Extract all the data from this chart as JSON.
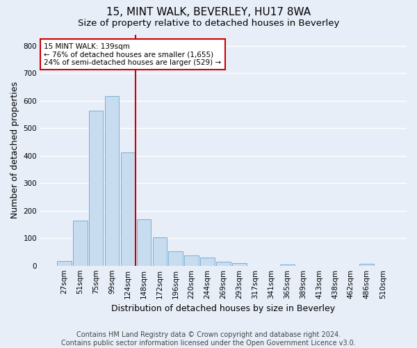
{
  "title": "15, MINT WALK, BEVERLEY, HU17 8WA",
  "subtitle": "Size of property relative to detached houses in Beverley",
  "xlabel": "Distribution of detached houses by size in Beverley",
  "ylabel": "Number of detached properties",
  "categories": [
    "27sqm",
    "51sqm",
    "75sqm",
    "99sqm",
    "124sqm",
    "148sqm",
    "172sqm",
    "196sqm",
    "220sqm",
    "244sqm",
    "269sqm",
    "293sqm",
    "317sqm",
    "341sqm",
    "365sqm",
    "389sqm",
    "413sqm",
    "438sqm",
    "462sqm",
    "486sqm",
    "510sqm"
  ],
  "values": [
    18,
    163,
    563,
    618,
    413,
    170,
    103,
    52,
    38,
    30,
    15,
    10,
    0,
    0,
    5,
    0,
    0,
    0,
    0,
    7,
    0
  ],
  "bar_color": "#c8dcf0",
  "bar_edge_color": "#7aafd4",
  "vline_color": "#cc0000",
  "annotation_text": "15 MINT WALK: 139sqm\n← 76% of detached houses are smaller (1,655)\n24% of semi-detached houses are larger (529) →",
  "annotation_box_color": "#ffffff",
  "annotation_box_edge_color": "#cc0000",
  "ylim": [
    0,
    840
  ],
  "yticks": [
    0,
    100,
    200,
    300,
    400,
    500,
    600,
    700,
    800
  ],
  "footnote": "Contains HM Land Registry data © Crown copyright and database right 2024.\nContains public sector information licensed under the Open Government Licence v3.0.",
  "bg_color": "#e8eef8",
  "grid_color": "#ffffff",
  "title_fontsize": 11,
  "subtitle_fontsize": 9.5,
  "axis_label_fontsize": 9,
  "tick_fontsize": 7.5,
  "footnote_fontsize": 7
}
